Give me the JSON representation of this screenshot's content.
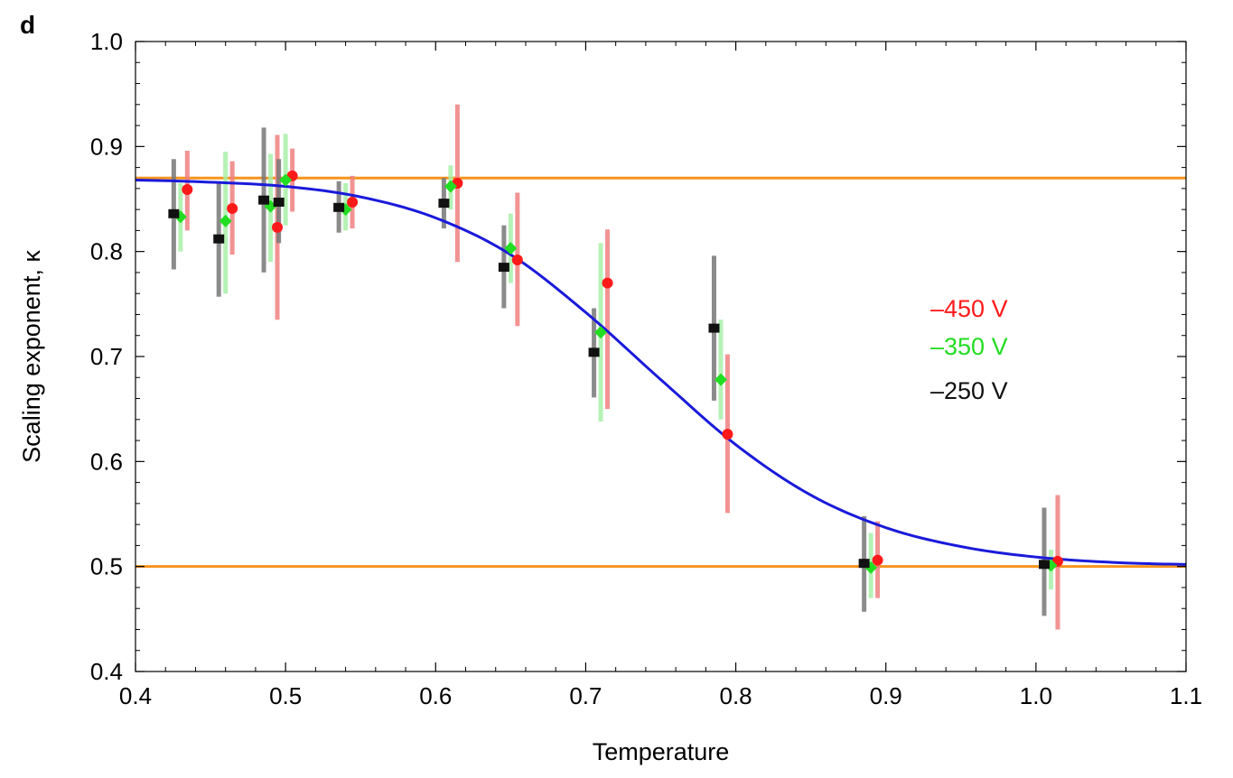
{
  "panel_label": "d",
  "chart_data": {
    "type": "scatter",
    "title": "",
    "xlabel": "Temperature",
    "ylabel": "Scaling exponent, κ",
    "xlim": [
      0.4,
      1.1
    ],
    "ylim": [
      0.4,
      1.0
    ],
    "x_ticks": [
      "0.4",
      "0.5",
      "0.6",
      "0.7",
      "0.8",
      "0.9",
      "1.0",
      "1.1"
    ],
    "y_ticks": [
      "0.4",
      "0.5",
      "0.6",
      "0.7",
      "0.8",
      "0.9",
      "1.0"
    ],
    "grid": false,
    "legend_position": "right",
    "reference_lines": [
      {
        "y": 0.87,
        "color": "#f7941d"
      },
      {
        "y": 0.5,
        "color": "#f7941d"
      }
    ],
    "fit_curve": {
      "color": "#1a1adb",
      "x": [
        0.4,
        0.45,
        0.5,
        0.55,
        0.6,
        0.65,
        0.7,
        0.75,
        0.8,
        0.85,
        0.9,
        0.95,
        1.0,
        1.05,
        1.1
      ],
      "y": [
        0.868,
        0.866,
        0.862,
        0.852,
        0.832,
        0.797,
        0.742,
        0.678,
        0.616,
        0.568,
        0.537,
        0.519,
        0.509,
        0.504,
        0.502
      ]
    },
    "series": [
      {
        "name": "–450 V",
        "color": "#ff1a1a",
        "bar_color": "#f08080",
        "marker": "circle",
        "x": [
          0.43,
          0.46,
          0.49,
          0.5,
          0.54,
          0.61,
          0.65,
          0.71,
          0.79,
          0.89,
          1.01
        ],
        "y": [
          0.859,
          0.841,
          0.823,
          0.872,
          0.847,
          0.865,
          0.792,
          0.77,
          0.626,
          0.506,
          0.505
        ],
        "ylow": [
          0.82,
          0.797,
          0.735,
          0.838,
          0.822,
          0.79,
          0.729,
          0.65,
          0.551,
          0.47,
          0.44
        ],
        "yhigh": [
          0.896,
          0.886,
          0.911,
          0.898,
          0.872,
          0.94,
          0.856,
          0.821,
          0.702,
          0.543,
          0.568
        ]
      },
      {
        "name": "–350 V",
        "color": "#22dd22",
        "bar_color": "#a8f0a8",
        "marker": "diamond",
        "x": [
          0.43,
          0.46,
          0.49,
          0.5,
          0.54,
          0.61,
          0.65,
          0.71,
          0.79,
          0.89,
          1.01
        ],
        "y": [
          0.833,
          0.829,
          0.843,
          0.868,
          0.84,
          0.862,
          0.803,
          0.723,
          0.678,
          0.499,
          0.501
        ],
        "ylow": [
          0.8,
          0.76,
          0.79,
          0.825,
          0.82,
          0.84,
          0.77,
          0.638,
          0.64,
          0.47,
          0.478
        ],
        "yhigh": [
          0.865,
          0.895,
          0.893,
          0.912,
          0.865,
          0.882,
          0.836,
          0.808,
          0.735,
          0.532,
          0.516
        ]
      },
      {
        "name": "–250 V",
        "color": "#111111",
        "bar_color": "#777777",
        "marker": "square",
        "x": [
          0.43,
          0.46,
          0.49,
          0.5,
          0.54,
          0.61,
          0.65,
          0.71,
          0.79,
          0.89,
          1.01
        ],
        "y": [
          0.836,
          0.812,
          0.849,
          0.847,
          0.842,
          0.846,
          0.785,
          0.704,
          0.727,
          0.503,
          0.502
        ],
        "ylow": [
          0.783,
          0.757,
          0.78,
          0.808,
          0.818,
          0.822,
          0.746,
          0.661,
          0.658,
          0.457,
          0.453
        ],
        "yhigh": [
          0.888,
          0.867,
          0.918,
          0.888,
          0.867,
          0.87,
          0.825,
          0.746,
          0.796,
          0.548,
          0.556
        ]
      }
    ]
  }
}
